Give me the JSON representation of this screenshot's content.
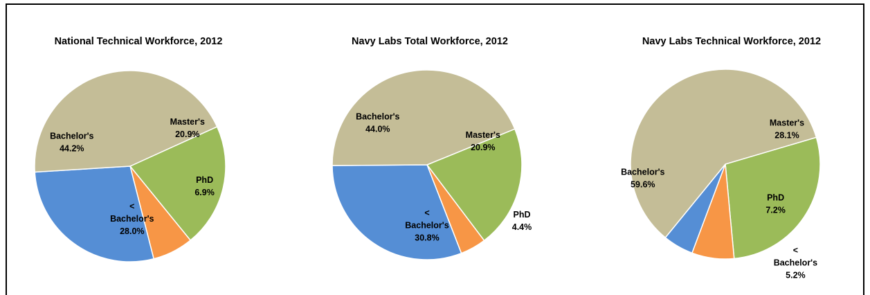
{
  "chart_data": [
    {
      "type": "pie",
      "title": "National Technical Workforce, 2012",
      "slices": [
        {
          "label": "Master's",
          "value": 20.9,
          "display": "20.9%",
          "color": "#9BBB59"
        },
        {
          "label": "PhD",
          "value": 6.9,
          "display": "6.9%",
          "color": "#F79646"
        },
        {
          "label": "< Bachelor's",
          "value": 28.0,
          "display": "28.0%",
          "color": "#558ED5"
        },
        {
          "label": "Bachelor's",
          "value": 44.2,
          "display": "44.2%",
          "color": "#C4BD97"
        }
      ]
    },
    {
      "type": "pie",
      "title": "Navy Labs Total Workforce, 2012",
      "slices": [
        {
          "label": "Master's",
          "value": 20.9,
          "display": "20.9%",
          "color": "#9BBB59"
        },
        {
          "label": "PhD",
          "value": 4.4,
          "display": "4.4%",
          "color": "#F79646"
        },
        {
          "label": "< Bachelor's",
          "value": 30.8,
          "display": "30.8%",
          "color": "#558ED5"
        },
        {
          "label": "Bachelor's",
          "value": 44.0,
          "display": "44.0%",
          "color": "#C4BD97"
        }
      ]
    },
    {
      "type": "pie",
      "title": "Navy Labs Technical Workforce, 2012",
      "slices": [
        {
          "label": "Master's",
          "value": 28.1,
          "display": "28.1%",
          "color": "#9BBB59"
        },
        {
          "label": "PhD",
          "value": 7.2,
          "display": "7.2%",
          "color": "#F79646"
        },
        {
          "label": "< Bachelor's",
          "value": 5.2,
          "display": "5.2%",
          "color": "#558ED5"
        },
        {
          "label": "Bachelor's",
          "value": 59.6,
          "display": "59.6%",
          "color": "#C4BD97"
        }
      ]
    }
  ]
}
